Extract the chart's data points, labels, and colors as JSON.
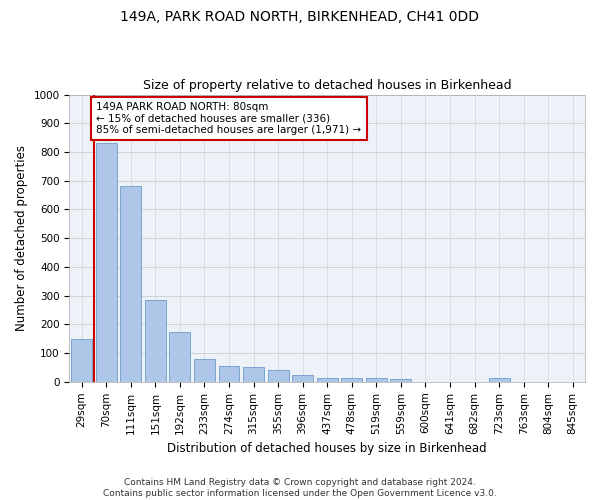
{
  "title": "149A, PARK ROAD NORTH, BIRKENHEAD, CH41 0DD",
  "subtitle": "Size of property relative to detached houses in Birkenhead",
  "xlabel": "Distribution of detached houses by size in Birkenhead",
  "ylabel": "Number of detached properties",
  "categories": [
    "29sqm",
    "70sqm",
    "111sqm",
    "151sqm",
    "192sqm",
    "233sqm",
    "274sqm",
    "315sqm",
    "355sqm",
    "396sqm",
    "437sqm",
    "478sqm",
    "519sqm",
    "559sqm",
    "600sqm",
    "641sqm",
    "682sqm",
    "723sqm",
    "763sqm",
    "804sqm",
    "845sqm"
  ],
  "values": [
    150,
    830,
    680,
    285,
    175,
    80,
    55,
    50,
    42,
    22,
    15,
    12,
    12,
    10,
    0,
    0,
    0,
    12,
    0,
    0,
    0
  ],
  "bar_color": "#aec6e8",
  "bar_edge_color": "#5a8fc2",
  "vline_x": 0.5,
  "vline_color": "#cc0000",
  "annotation_text": "149A PARK ROAD NORTH: 80sqm\n← 15% of detached houses are smaller (336)\n85% of semi-detached houses are larger (1,971) →",
  "annotation_box_color": "#ffffff",
  "annotation_box_edge_color": "#cc0000",
  "yticks": [
    0,
    100,
    200,
    300,
    400,
    500,
    600,
    700,
    800,
    900,
    1000
  ],
  "ylim": [
    0,
    1000
  ],
  "grid_color": "#cccccc",
  "bg_color": "#edf2f9",
  "footer": "Contains HM Land Registry data © Crown copyright and database right 2024.\nContains public sector information licensed under the Open Government Licence v3.0.",
  "title_fontsize": 10,
  "subtitle_fontsize": 9,
  "axis_label_fontsize": 8.5,
  "tick_fontsize": 7.5,
  "annotation_fontsize": 7.5,
  "footer_fontsize": 6.5
}
